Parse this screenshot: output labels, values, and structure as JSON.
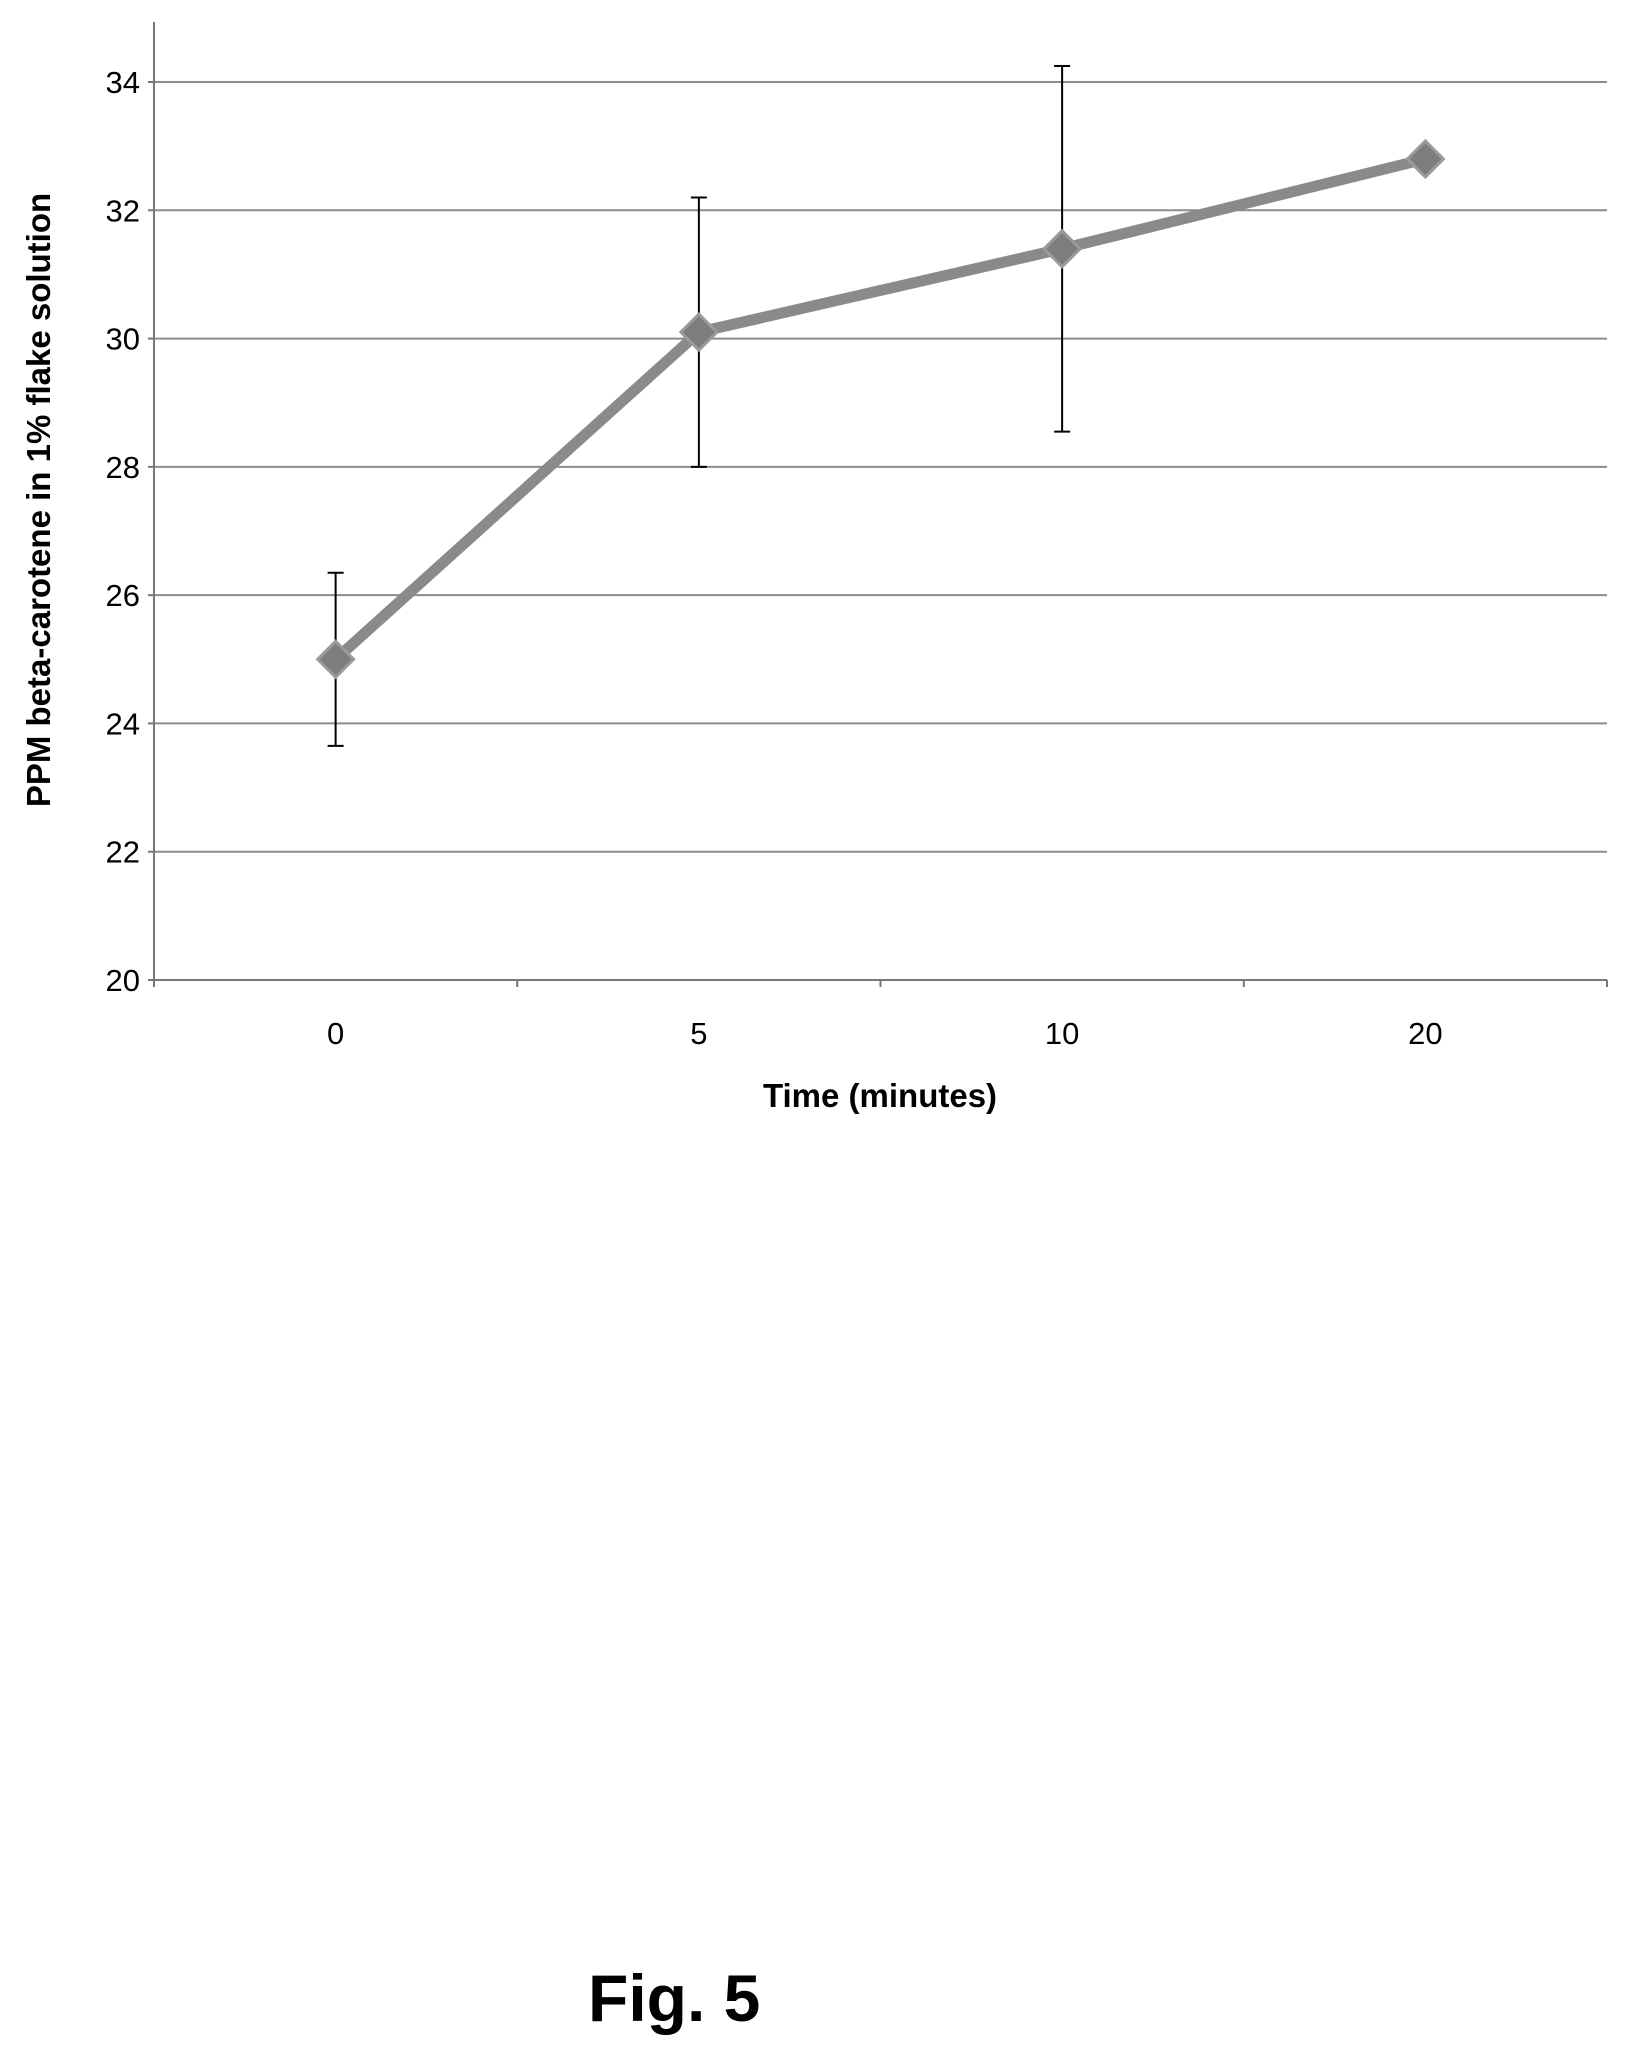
{
  "figure": {
    "caption": "Fig. 5"
  },
  "chart_data": {
    "type": "line",
    "categories": [
      "0",
      "5",
      "10",
      "20"
    ],
    "series": [
      {
        "values": [
          25.0,
          30.1,
          31.4,
          32.8
        ],
        "error": [
          1.35,
          2.1,
          2.85,
          0
        ],
        "color": "#8a8a8a",
        "marker": "diamond"
      }
    ],
    "xlabel": "Time (minutes)",
    "ylabel": "PPM  beta-carotene in 1% flake solution",
    "ylim": [
      20,
      34
    ],
    "yticks": [
      "20",
      "22",
      "24",
      "26",
      "28",
      "30",
      "32",
      "34"
    ],
    "grid": true,
    "legend": "none"
  }
}
